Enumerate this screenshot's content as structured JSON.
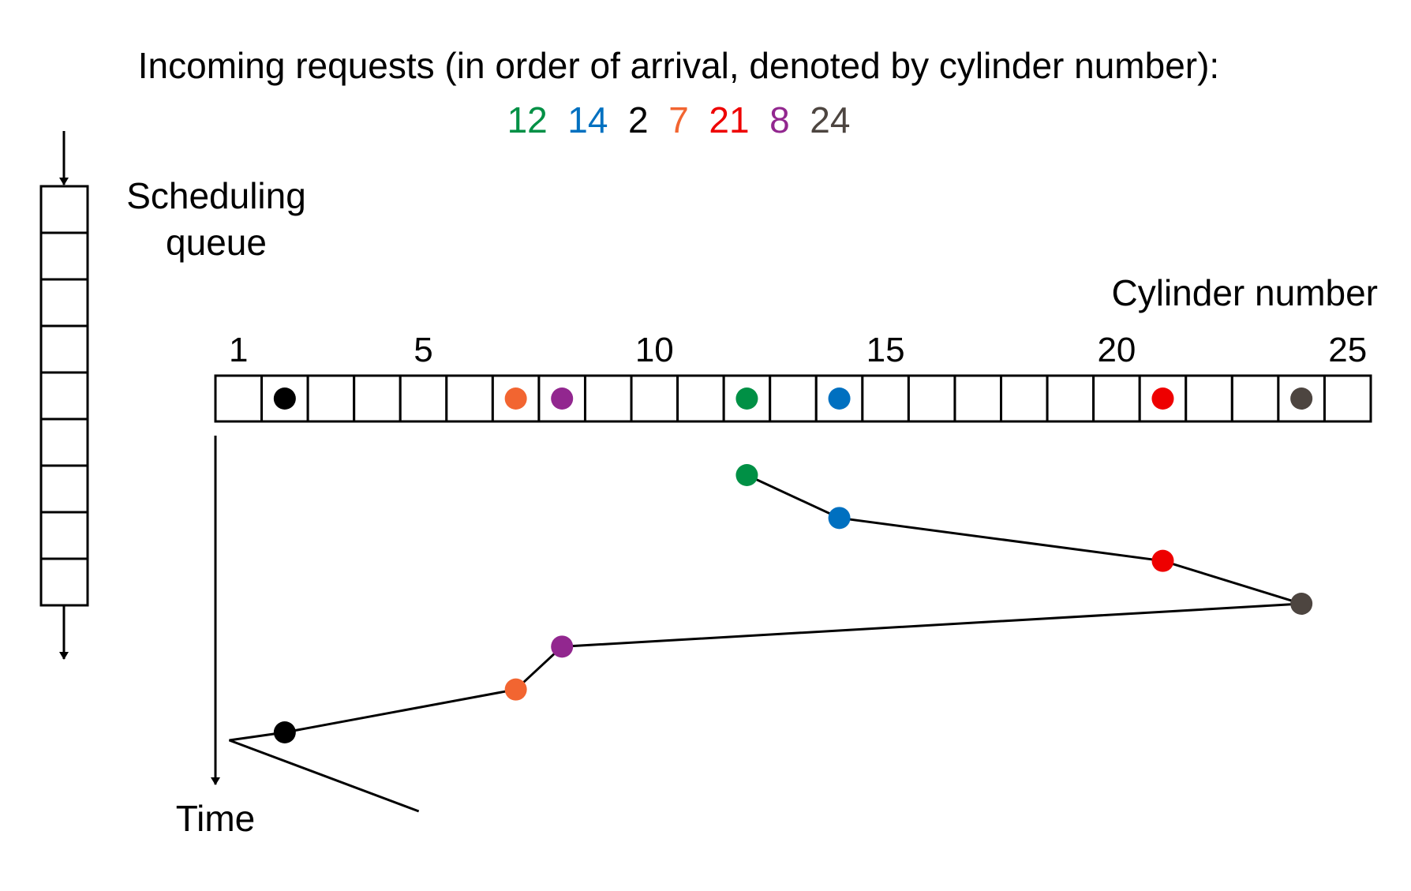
{
  "title": "Incoming requests (in order of arrival, denoted by cylinder number):",
  "requests": [
    {
      "cylinder": 12,
      "label": "12",
      "color": "#009045"
    },
    {
      "cylinder": 14,
      "label": "14",
      "color": "#0070c0"
    },
    {
      "cylinder": 2,
      "label": "2",
      "color": "#000000"
    },
    {
      "cylinder": 7,
      "label": "7",
      "color": "#f26531"
    },
    {
      "cylinder": 21,
      "label": "21",
      "color": "#ee0000"
    },
    {
      "cylinder": 8,
      "label": "8",
      "color": "#92278f"
    },
    {
      "cylinder": 24,
      "label": "24",
      "color": "#4d4540"
    }
  ],
  "queue_label_line1": "Scheduling",
  "queue_label_line2": "queue",
  "queue_slots": 9,
  "axis_label": "Cylinder number",
  "cylinder_count": 25,
  "tick_labels": [
    {
      "cylinder": 1,
      "label": "1"
    },
    {
      "cylinder": 5,
      "label": "5"
    },
    {
      "cylinder": 10,
      "label": "10"
    },
    {
      "cylinder": 15,
      "label": "15"
    },
    {
      "cylinder": 20,
      "label": "20"
    },
    {
      "cylinder": 25,
      "label": "25"
    }
  ],
  "time_label": "Time",
  "service_order": [
    12,
    14,
    21,
    24,
    8,
    7,
    2
  ]
}
